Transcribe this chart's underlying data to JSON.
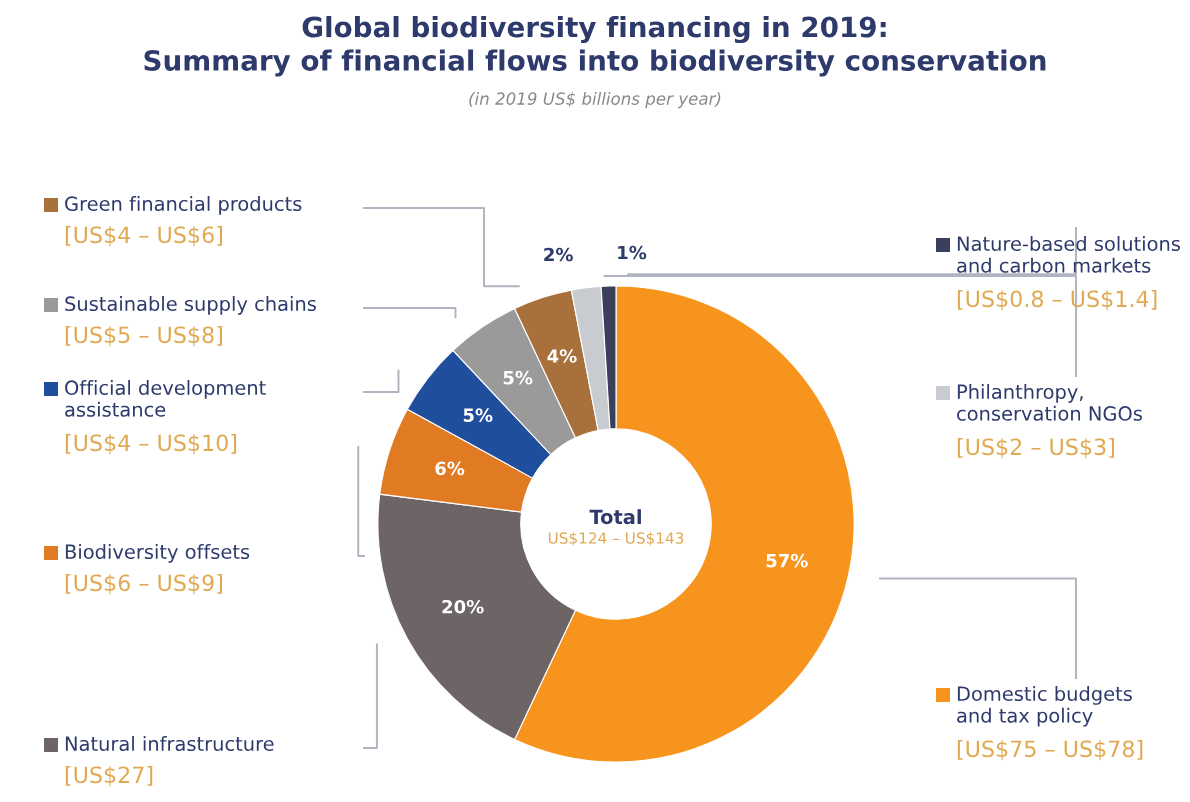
{
  "chart_data": {
    "type": "donut",
    "title": "Global biodiversity financing in 2019:\nSummary of financial flows into biodiversity conservation",
    "subtitle": "(in 2019 US$ billions per year)",
    "categories": [
      "Domestic budgets\nand tax policy",
      "Natural infrastructure",
      "Biodiversity offsets",
      "Official development\nassistance",
      "Sustainable supply chains",
      "Green financial products",
      "Philanthropy,\nconservation NGOs",
      "Nature-based solutions\nand carbon markets"
    ],
    "values": [
      57,
      20,
      6,
      5,
      5,
      4,
      2,
      1
    ],
    "colors": [
      "#f7941d",
      "#6d6466",
      "#e07b24",
      "#1f4e9c",
      "#9a9a9a",
      "#a8703a",
      "#c8ccd0",
      "#3a3f5c"
    ],
    "legend": "left",
    "value_labels": [
      "57%",
      "20%",
      "6%",
      "5%",
      "5%",
      "4%",
      "2%",
      "1%"
    ],
    "annotations": [
      "[US$75 – US$78]",
      "[US$27]",
      "[US$6 – US$9]",
      "[US$4 – US$10]",
      "[US$5 – US$8]",
      "[US$4 – US$6]",
      "[US$2 – US$3]",
      "[US$0.8 – US$1.4]",
      "Total",
      "US$124 – US$143"
    ]
  }
}
